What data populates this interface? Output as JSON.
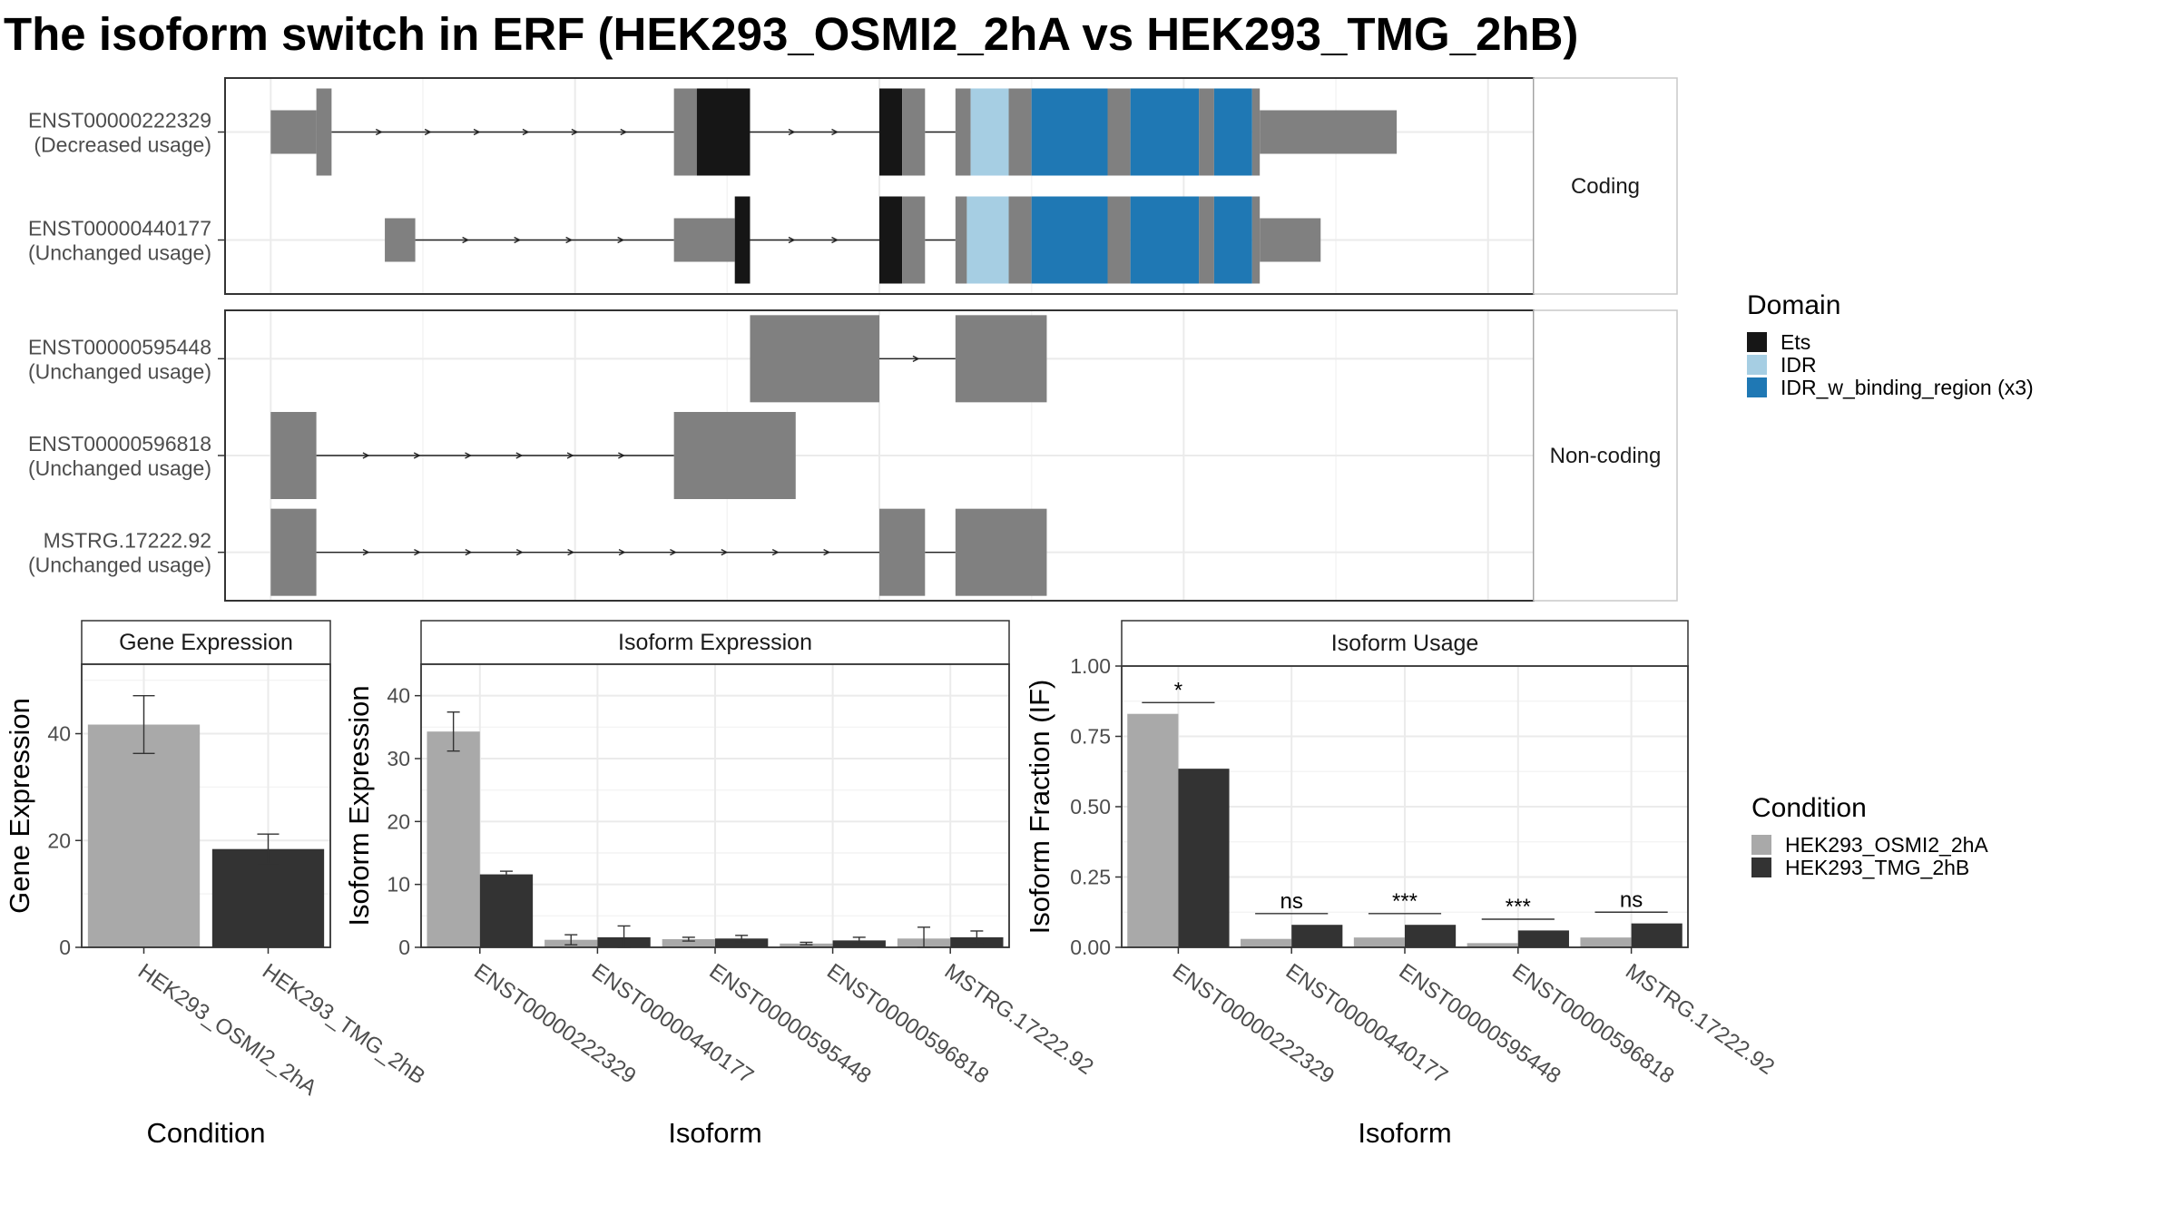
{
  "title": "The isoform switch in ERF (HEK293_OSMI2_2hA vs HEK293_TMG_2hB)",
  "colors": {
    "exon": "#808080",
    "ets": "#161616",
    "idr": "#A6CEE3",
    "idr_binding": "#1F78B4",
    "cond_a": "#A9A9A9",
    "cond_b": "#333333",
    "strip_bg": "#FFFFFF",
    "grid": "#EBEBEB",
    "border": "#333333"
  },
  "chart_data": [
    {
      "type": "gene-structure",
      "facets": [
        {
          "label": "Coding",
          "isoforms": [
            {
              "id": "ENST00000222329",
              "usage": "(Decreased usage)",
              "segments": [
                {
                  "s": 0,
                  "e": 6,
                  "kind": "utr"
                },
                {
                  "s": 6,
                  "e": 8,
                  "kind": "cds"
                },
                {
                  "s": 53,
                  "e": 56,
                  "kind": "cds"
                },
                {
                  "s": 56,
                  "e": 63,
                  "kind": "ets"
                },
                {
                  "s": 80,
                  "e": 83,
                  "kind": "ets"
                },
                {
                  "s": 83,
                  "e": 86,
                  "kind": "cds"
                },
                {
                  "s": 90,
                  "e": 92,
                  "kind": "cds"
                },
                {
                  "s": 92,
                  "e": 97,
                  "kind": "idr"
                },
                {
                  "s": 97,
                  "e": 100,
                  "kind": "cds"
                },
                {
                  "s": 100,
                  "e": 110,
                  "kind": "idr_binding"
                },
                {
                  "s": 110,
                  "e": 113,
                  "kind": "cds"
                },
                {
                  "s": 113,
                  "e": 122,
                  "kind": "idr_binding"
                },
                {
                  "s": 122,
                  "e": 124,
                  "kind": "cds"
                },
                {
                  "s": 124,
                  "e": 129,
                  "kind": "idr_binding"
                },
                {
                  "s": 129,
                  "e": 130,
                  "kind": "cds"
                },
                {
                  "s": 130,
                  "e": 148,
                  "kind": "utr"
                }
              ],
              "introns": [
                [
                  8,
                  53
                ],
                [
                  63,
                  80
                ],
                [
                  86,
                  90
                ]
              ]
            },
            {
              "id": "ENST00000440177",
              "usage": "(Unchanged usage)",
              "segments": [
                {
                  "s": 15,
                  "e": 19,
                  "kind": "utr"
                },
                {
                  "s": 53,
                  "e": 61,
                  "kind": "utr"
                },
                {
                  "s": 61,
                  "e": 63,
                  "kind": "ets"
                },
                {
                  "s": 80,
                  "e": 83,
                  "kind": "ets"
                },
                {
                  "s": 83,
                  "e": 86,
                  "kind": "cds"
                },
                {
                  "s": 90,
                  "e": 91.5,
                  "kind": "cds"
                },
                {
                  "s": 91.5,
                  "e": 97,
                  "kind": "idr"
                },
                {
                  "s": 97,
                  "e": 100,
                  "kind": "cds"
                },
                {
                  "s": 100,
                  "e": 110,
                  "kind": "idr_binding"
                },
                {
                  "s": 110,
                  "e": 113,
                  "kind": "cds"
                },
                {
                  "s": 113,
                  "e": 122,
                  "kind": "idr_binding"
                },
                {
                  "s": 122,
                  "e": 124,
                  "kind": "cds"
                },
                {
                  "s": 124,
                  "e": 129,
                  "kind": "idr_binding"
                },
                {
                  "s": 129,
                  "e": 130,
                  "kind": "cds"
                },
                {
                  "s": 130,
                  "e": 138,
                  "kind": "utr"
                }
              ],
              "introns": [
                [
                  19,
                  53
                ],
                [
                  63,
                  80
                ],
                [
                  86,
                  90
                ]
              ]
            }
          ]
        },
        {
          "label": "Non-coding",
          "isoforms": [
            {
              "id": "ENST00000595448",
              "usage": "(Unchanged usage)",
              "segments": [
                {
                  "s": 63,
                  "e": 80,
                  "kind": "nc"
                },
                {
                  "s": 90,
                  "e": 102,
                  "kind": "nc"
                }
              ],
              "introns": [
                [
                  80,
                  90
                ]
              ]
            },
            {
              "id": "ENST00000596818",
              "usage": "(Unchanged usage)",
              "segments": [
                {
                  "s": 0,
                  "e": 6,
                  "kind": "nc"
                },
                {
                  "s": 53,
                  "e": 69,
                  "kind": "nc"
                }
              ],
              "introns": [
                [
                  6,
                  53
                ]
              ]
            },
            {
              "id": "MSTRG.17222.92",
              "usage": "(Unchanged usage)",
              "segments": [
                {
                  "s": 0,
                  "e": 6,
                  "kind": "nc"
                },
                {
                  "s": 80,
                  "e": 86,
                  "kind": "nc"
                },
                {
                  "s": 90,
                  "e": 102,
                  "kind": "nc"
                }
              ],
              "introns": [
                [
                  6,
                  80
                ],
                [
                  86,
                  90
                ]
              ]
            }
          ]
        }
      ],
      "legend": {
        "title": "Domain",
        "entries": [
          {
            "name": "Ets",
            "color": "#161616"
          },
          {
            "name": "IDR",
            "color": "#A6CEE3"
          },
          {
            "name": "IDR_w_binding_region (x3)",
            "color": "#1F78B4"
          }
        ]
      }
    },
    {
      "type": "bar",
      "title": "Gene Expression",
      "xlabel": "Condition",
      "ylabel": "Gene Expression",
      "categories": [
        "HEK293_OSMI2_2hA",
        "HEK293_TMG_2hB"
      ],
      "values": [
        41.7,
        18.4
      ],
      "errors": [
        [
          36.3,
          47.1
        ],
        [
          15.6,
          21.2
        ]
      ],
      "ylim": [
        0,
        53
      ],
      "yticks": [
        0,
        20,
        40
      ]
    },
    {
      "type": "bar",
      "title": "Isoform Expression",
      "xlabel": "Isoform",
      "ylabel": "Isoform Expression",
      "categories": [
        "ENST00000222329",
        "ENST00000440177",
        "ENST00000595448",
        "ENST00000596818",
        "MSTRG.17222.92"
      ],
      "series": [
        {
          "name": "HEK293_OSMI2_2hA",
          "values": [
            34.3,
            1.2,
            1.3,
            0.6,
            1.4
          ],
          "errors": [
            [
              31.2,
              37.4
            ],
            [
              0.4,
              2.0
            ],
            [
              1.0,
              1.6
            ],
            [
              0.4,
              0.8
            ],
            [
              0.0,
              3.2
            ]
          ]
        },
        {
          "name": "HEK293_TMG_2hB",
          "values": [
            11.6,
            1.6,
            1.4,
            1.1,
            1.6
          ],
          "errors": [
            [
              11.1,
              12.1
            ],
            [
              0.0,
              3.4
            ],
            [
              0.9,
              1.9
            ],
            [
              0.6,
              1.6
            ],
            [
              0.6,
              2.6
            ]
          ]
        }
      ],
      "ylim": [
        0,
        45
      ],
      "yticks": [
        0,
        10,
        20,
        30,
        40
      ]
    },
    {
      "type": "bar",
      "title": "Isoform Usage",
      "xlabel": "Isoform",
      "ylabel": "Isoform Fraction (IF)",
      "categories": [
        "ENST00000222329",
        "ENST00000440177",
        "ENST00000595448",
        "ENST00000596818",
        "MSTRG.17222.92"
      ],
      "series": [
        {
          "name": "HEK293_OSMI2_2hA",
          "values": [
            0.83,
            0.03,
            0.035,
            0.015,
            0.035
          ]
        },
        {
          "name": "HEK293_TMG_2hB",
          "values": [
            0.635,
            0.08,
            0.08,
            0.06,
            0.085
          ]
        }
      ],
      "significance": [
        "*",
        "ns",
        "***",
        "***",
        "ns"
      ],
      "sig_heights": [
        0.87,
        0.12,
        0.12,
        0.1,
        0.125
      ],
      "ylim": [
        0,
        1.0
      ],
      "yticks": [
        0,
        0.25,
        0.5,
        0.75,
        1.0
      ],
      "ytick_labels": [
        "0.00",
        "0.25",
        "0.50",
        "0.75",
        "1.00"
      ]
    }
  ],
  "condition_legend": {
    "title": "Condition",
    "entries": [
      {
        "name": "HEK293_OSMI2_2hA",
        "color": "#A9A9A9"
      },
      {
        "name": "HEK293_TMG_2hB",
        "color": "#333333"
      }
    ]
  }
}
